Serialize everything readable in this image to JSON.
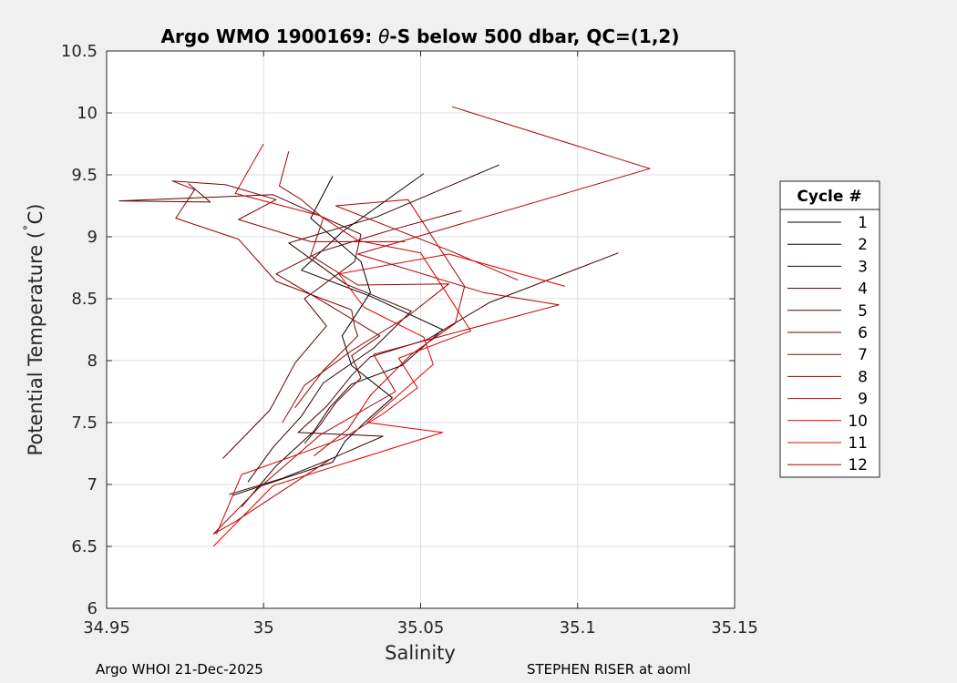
{
  "chart_data": {
    "type": "line",
    "title_main": "Argo WMO 1900169: ",
    "title_theta": "θ",
    "title_rest": "-S below 500 dbar,  QC=(1,2)",
    "xlabel": "Salinity",
    "ylabel_main": "Potential Temperature (",
    "ylabel_deg": "˚",
    "ylabel_unit": "C)",
    "xlim": [
      34.95,
      35.15
    ],
    "ylim": [
      6,
      10.5
    ],
    "xticks": [
      34.95,
      35,
      35.05,
      35.1,
      35.15
    ],
    "xtick_labels": [
      "34.95",
      "35",
      "35.05",
      "35.1",
      "35.15"
    ],
    "yticks": [
      6,
      6.5,
      7,
      7.5,
      8,
      8.5,
      9,
      9.5,
      10,
      10.5
    ],
    "ytick_labels": [
      "6",
      "6.5",
      "7",
      "7.5",
      "8",
      "8.5",
      "9",
      "9.5",
      "10",
      "10.5"
    ],
    "grid": true,
    "legend_title": "Cycle #",
    "legend_position": "outside-right",
    "series": [
      {
        "name": "1",
        "color": "#000000",
        "x": [
          35.022,
          35.015,
          35.031,
          35.034,
          35.025,
          35.028,
          35.041,
          35.033,
          35.026,
          35.022,
          34.99
        ],
        "y": [
          9.49,
          9.15,
          8.8,
          8.55,
          8.2,
          7.96,
          7.7,
          7.52,
          7.35,
          7.18,
          6.91
        ]
      },
      {
        "name": "2",
        "color": "#170000",
        "x": [
          35.051,
          35.025,
          35.012,
          35.034,
          35.057,
          35.044,
          35.028,
          35.021,
          35.016,
          35.004,
          34.993
        ],
        "y": [
          9.51,
          9.04,
          8.73,
          8.52,
          8.25,
          7.96,
          7.81,
          7.62,
          7.43,
          7.15,
          6.82
        ]
      },
      {
        "name": "3",
        "color": "#2e0000",
        "x": [
          35.075,
          35.036,
          35.008,
          35.026,
          35.047,
          35.035,
          35.019,
          35.012,
          35.003,
          34.995
        ],
        "y": [
          9.58,
          9.16,
          8.95,
          8.62,
          8.4,
          8.1,
          7.82,
          7.55,
          7.3,
          7.02
        ]
      },
      {
        "name": "4",
        "color": "#450000",
        "x": [
          35.113,
          35.072,
          35.052,
          35.034,
          35.028,
          35.02,
          35.011,
          35.038,
          35.019,
          35.006,
          34.989
        ],
        "y": [
          8.87,
          8.47,
          8.17,
          8.03,
          7.88,
          7.63,
          7.42,
          7.39,
          7.18,
          7.05,
          6.92
        ]
      },
      {
        "name": "5",
        "color": "#5c0000",
        "x": [
          34.976,
          34.983,
          34.954,
          35.003,
          35.031,
          35.029,
          35.013,
          35.02,
          35.01,
          35.002,
          34.987
        ],
        "y": [
          9.43,
          9.28,
          9.29,
          9.34,
          9.02,
          8.8,
          8.5,
          8.28,
          7.98,
          7.6,
          7.21
        ]
      },
      {
        "name": "6",
        "color": "#730000",
        "x": [
          35.063,
          35.04,
          35.018,
          35.004,
          35.02,
          35.037,
          35.028,
          35.031,
          35.023,
          35.018,
          35.013
        ],
        "y": [
          9.21,
          9.05,
          8.88,
          8.7,
          8.46,
          8.2,
          8.04,
          7.86,
          7.66,
          7.48,
          7.33
        ]
      },
      {
        "name": "7",
        "color": "#8a0000",
        "x": [
          35.045,
          35.015,
          34.992,
          35.004,
          34.988,
          34.971,
          34.978,
          34.972,
          34.992,
          35.004,
          35.028,
          35.029,
          35.03,
          35.019,
          35.01
        ],
        "y": [
          8.96,
          8.96,
          9.14,
          9.3,
          9.42,
          9.45,
          9.38,
          9.15,
          8.98,
          8.64,
          8.41,
          8.27,
          8.2,
          7.92,
          7.62
        ]
      },
      {
        "name": "8",
        "color": "#a10000",
        "x": [
          35.008,
          35.005,
          35.012,
          35.019,
          35.015,
          35.03,
          35.059,
          35.046,
          35.028,
          35.013,
          35.006
        ],
        "y": [
          9.69,
          9.41,
          9.3,
          9.15,
          8.85,
          8.61,
          8.62,
          8.36,
          8.08,
          7.8,
          7.5
        ]
      },
      {
        "name": "9",
        "color": "#b80000",
        "x": [
          35.081,
          35.06,
          35.023,
          35.046,
          35.064,
          35.061,
          35.047,
          35.034,
          35.027,
          35.016
        ],
        "y": [
          8.65,
          8.88,
          9.25,
          9.3,
          8.6,
          8.3,
          8.05,
          7.72,
          7.45,
          7.23
        ]
      },
      {
        "name": "10",
        "color": "#cf0000",
        "x": [
          35.0,
          34.991,
          35.018,
          35.03,
          35.05,
          35.066,
          35.043,
          35.049,
          35.038,
          35.025,
          34.993,
          34.985
        ],
        "y": [
          9.75,
          9.35,
          9.17,
          8.97,
          8.87,
          8.24,
          8.02,
          7.78,
          7.57,
          7.37,
          7.08,
          6.6
        ]
      },
      {
        "name": "11",
        "color": "#e60000",
        "x": [
          35.096,
          35.059,
          35.024,
          35.032,
          35.051,
          35.054,
          35.033,
          35.057,
          35.003,
          34.984
        ],
        "y": [
          8.6,
          8.86,
          8.7,
          8.43,
          8.19,
          7.97,
          7.5,
          7.42,
          6.99,
          6.5
        ]
      },
      {
        "name": "12",
        "color": "#b00000",
        "x": [
          35.06,
          35.123,
          35.03,
          35.07,
          35.094,
          35.035,
          35.042,
          35.018,
          34.998,
          34.984,
          34.991,
          35.021
        ],
        "y": [
          10.05,
          9.55,
          8.86,
          8.55,
          8.45,
          8.05,
          7.75,
          7.4,
          6.96,
          6.6,
          6.7,
          7.2
        ]
      }
    ]
  },
  "footer": {
    "left": "Argo WHOI 21-Dec-2025",
    "right": "STEPHEN RISER at aoml"
  }
}
